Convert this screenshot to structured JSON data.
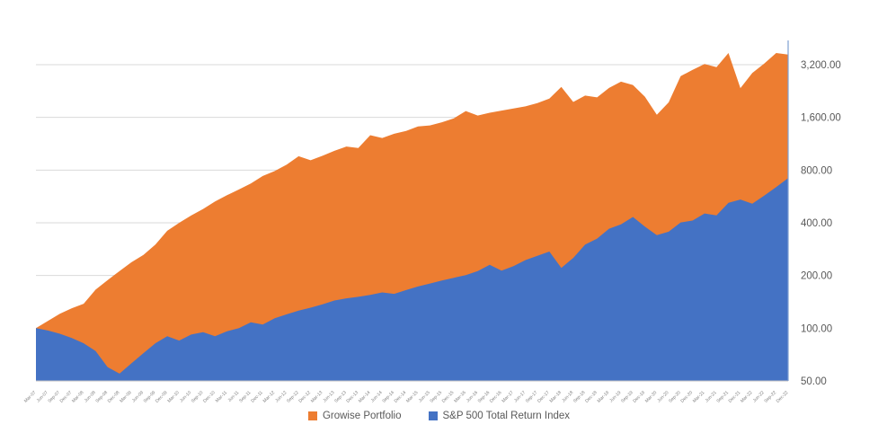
{
  "chart_data": {
    "type": "area",
    "title": "",
    "x_labels": [
      "Mar-07",
      "Jun-07",
      "Sep-07",
      "Dec-07",
      "Mar-08",
      "Jun-08",
      "Sep-08",
      "Dec-08",
      "Mar-09",
      "Jun-09",
      "Sep-09",
      "Dec-09",
      "Mar-10",
      "Jun-10",
      "Sep-10",
      "Dec-10",
      "Mar-11",
      "Jun-11",
      "Sep-11",
      "Dec-11",
      "Mar-12",
      "Jun-12",
      "Sep-12",
      "Dec-12",
      "Mar-13",
      "Jun-13",
      "Sep-13",
      "Dec-13",
      "Mar-14",
      "Jun-14",
      "Sep-14",
      "Dec-14",
      "Mar-15",
      "Jun-15",
      "Sep-15",
      "Dec-15",
      "Mar-16",
      "Jun-16",
      "Sep-16",
      "Dec-16",
      "Mar-17",
      "Jun-17",
      "Sep-17",
      "Dec-17",
      "Mar-18",
      "Jun-18",
      "Sep-18",
      "Dec-18",
      "Mar-19",
      "Jun-19",
      "Sep-19",
      "Dec-19",
      "Mar-20",
      "Jun-20",
      "Sep-20",
      "Dec-20",
      "Mar-21",
      "Jun-21",
      "Sep-21",
      "Dec-21",
      "Mar-22",
      "Jun-22",
      "Sep-22",
      "Dec-22"
    ],
    "series": [
      {
        "name": "Growise Portfolio",
        "color": "#ED7D31",
        "values": [
          100,
          110,
          121,
          130,
          138,
          166,
          188,
          212,
          238,
          262,
          300,
          360,
          400,
          440,
          480,
          530,
          575,
          620,
          670,
          740,
          790,
          860,
          960,
          910,
          965,
          1030,
          1090,
          1070,
          1265,
          1220,
          1290,
          1340,
          1420,
          1440,
          1500,
          1580,
          1740,
          1640,
          1700,
          1750,
          1800,
          1850,
          1930,
          2050,
          2390,
          1960,
          2130,
          2080,
          2355,
          2560,
          2450,
          2100,
          1655,
          1950,
          2750,
          2990,
          3230,
          3100,
          3730,
          2350,
          2870,
          3250,
          3730,
          3650
        ]
      },
      {
        "name": "S&P 500 Total Return Index",
        "color": "#4472C4",
        "values": [
          100,
          97,
          93,
          88,
          82,
          74,
          60,
          55,
          63,
          72,
          82,
          90,
          85,
          92,
          95,
          90,
          96,
          100,
          108,
          105,
          114,
          120,
          126,
          131,
          137,
          144,
          148,
          151,
          155,
          160,
          157,
          165,
          173,
          180,
          187,
          194,
          201,
          212,
          230,
          213,
          226,
          245,
          259,
          274,
          221,
          252,
          300,
          325,
          370,
          392,
          432,
          380,
          340,
          356,
          402,
          412,
          452,
          441,
          520,
          543,
          514,
          572,
          640,
          720
        ]
      }
    ],
    "y_axis": {
      "side": "right",
      "scale": "log2",
      "min": 50,
      "tick_labels": [
        "3,200.00",
        "1,600.00",
        "800.00",
        "400.00",
        "200.00",
        "100.00",
        "50.00"
      ],
      "tick_values": [
        3200,
        1600,
        800,
        400,
        200,
        100,
        50
      ],
      "label_color": "#595959"
    },
    "x_axis": {
      "label_rotation": -45,
      "label_color": "#7F7F7F"
    },
    "legend": {
      "position": "bottom-center"
    },
    "grid": {
      "show": true,
      "color": "#D9D9D9",
      "bottom_axis_color": "#BFBFBF",
      "right_axis_color": "#7F9FD1"
    },
    "plot_background": "#FFFFFF"
  }
}
